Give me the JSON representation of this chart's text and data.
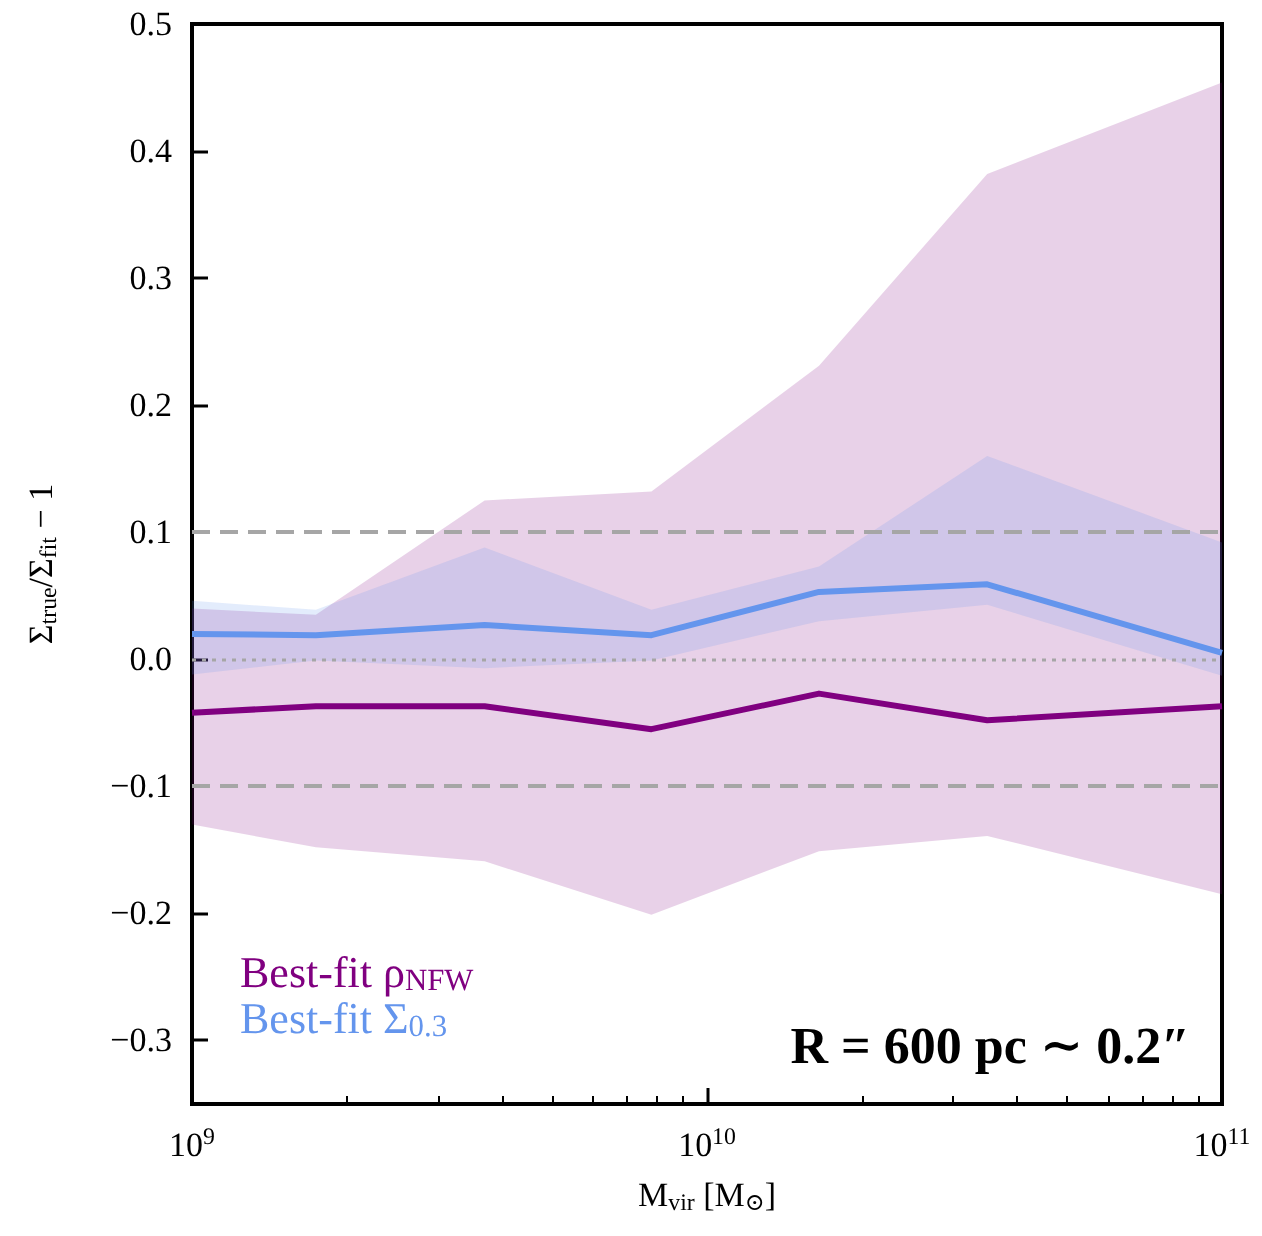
{
  "chart_data": {
    "type": "line",
    "xlabel": "M$_{vir}$ [M$_{⊙}$]",
    "ylabel": "Σ$_{true}$/Σ$_{fit}$ − 1",
    "x": [
      1000000000.0,
      1740000000.0,
      3700000000.0,
      7800000000.0,
      16500000000.0,
      35000000000.0,
      100000000000.0
    ],
    "series": [
      {
        "name": "Best-fit ρ$_{NFW}$",
        "color": "#800080",
        "values": [
          -0.042,
          -0.037,
          -0.037,
          -0.055,
          -0.027,
          -0.048,
          -0.037
        ],
        "lower": [
          -0.13,
          -0.148,
          -0.159,
          -0.201,
          -0.151,
          -0.139,
          -0.185
        ],
        "upper": [
          0.04,
          0.035,
          0.125,
          0.132,
          0.231,
          0.382,
          0.454
        ]
      },
      {
        "name": "Best-fit Σ$_{0.3}$",
        "color": "#6495ed",
        "values": [
          0.02,
          0.019,
          0.027,
          0.019,
          0.053,
          0.059,
          0.005
        ],
        "lower": [
          -0.012,
          -0.001,
          -0.007,
          -0.001,
          0.03,
          0.043,
          -0.013
        ],
        "upper": [
          0.046,
          0.039,
          0.088,
          0.039,
          0.073,
          0.16,
          0.092
        ]
      }
    ],
    "log": "x",
    "xlim": [
      1000000000.0,
      100000000000.0
    ],
    "xticks": [
      {
        "value": 1000000000.0,
        "label": "10$^{9}$"
      },
      {
        "value": 10000000000.0,
        "label": "10$^{10}$"
      },
      {
        "value": 100000000000.0,
        "label": "10$^{11}$"
      }
    ],
    "ylim": [
      -0.35,
      0.5
    ],
    "yticks": [
      {
        "value": -0.3,
        "label": "−0.3"
      },
      {
        "value": -0.2,
        "label": "−0.2"
      },
      {
        "value": -0.1,
        "label": "−0.1"
      },
      {
        "value": 0,
        "label": "0.0"
      },
      {
        "value": 0.1,
        "label": "0.1"
      },
      {
        "value": 0.2,
        "label": "0.2"
      },
      {
        "value": 0.3,
        "label": "0.3"
      },
      {
        "value": 0.4,
        "label": "0.4"
      },
      {
        "value": 0.5,
        "label": "0.5"
      }
    ],
    "ref_lines": [
      {
        "axis": "y",
        "value": 0.1,
        "color": "#a6a6a6",
        "line_style": "dashed"
      },
      {
        "axis": "y",
        "value": 0,
        "color": "#a6a6a6",
        "line_style": "dotted"
      },
      {
        "axis": "y",
        "value": -0.1,
        "color": "#a6a6a6",
        "line_style": "dashed"
      }
    ],
    "annotations": [
      "R = 600 pc ∼ 0.2″"
    ],
    "legend": "bottom left",
    "marker": "none",
    "line_style": "solid",
    "grid": false
  }
}
